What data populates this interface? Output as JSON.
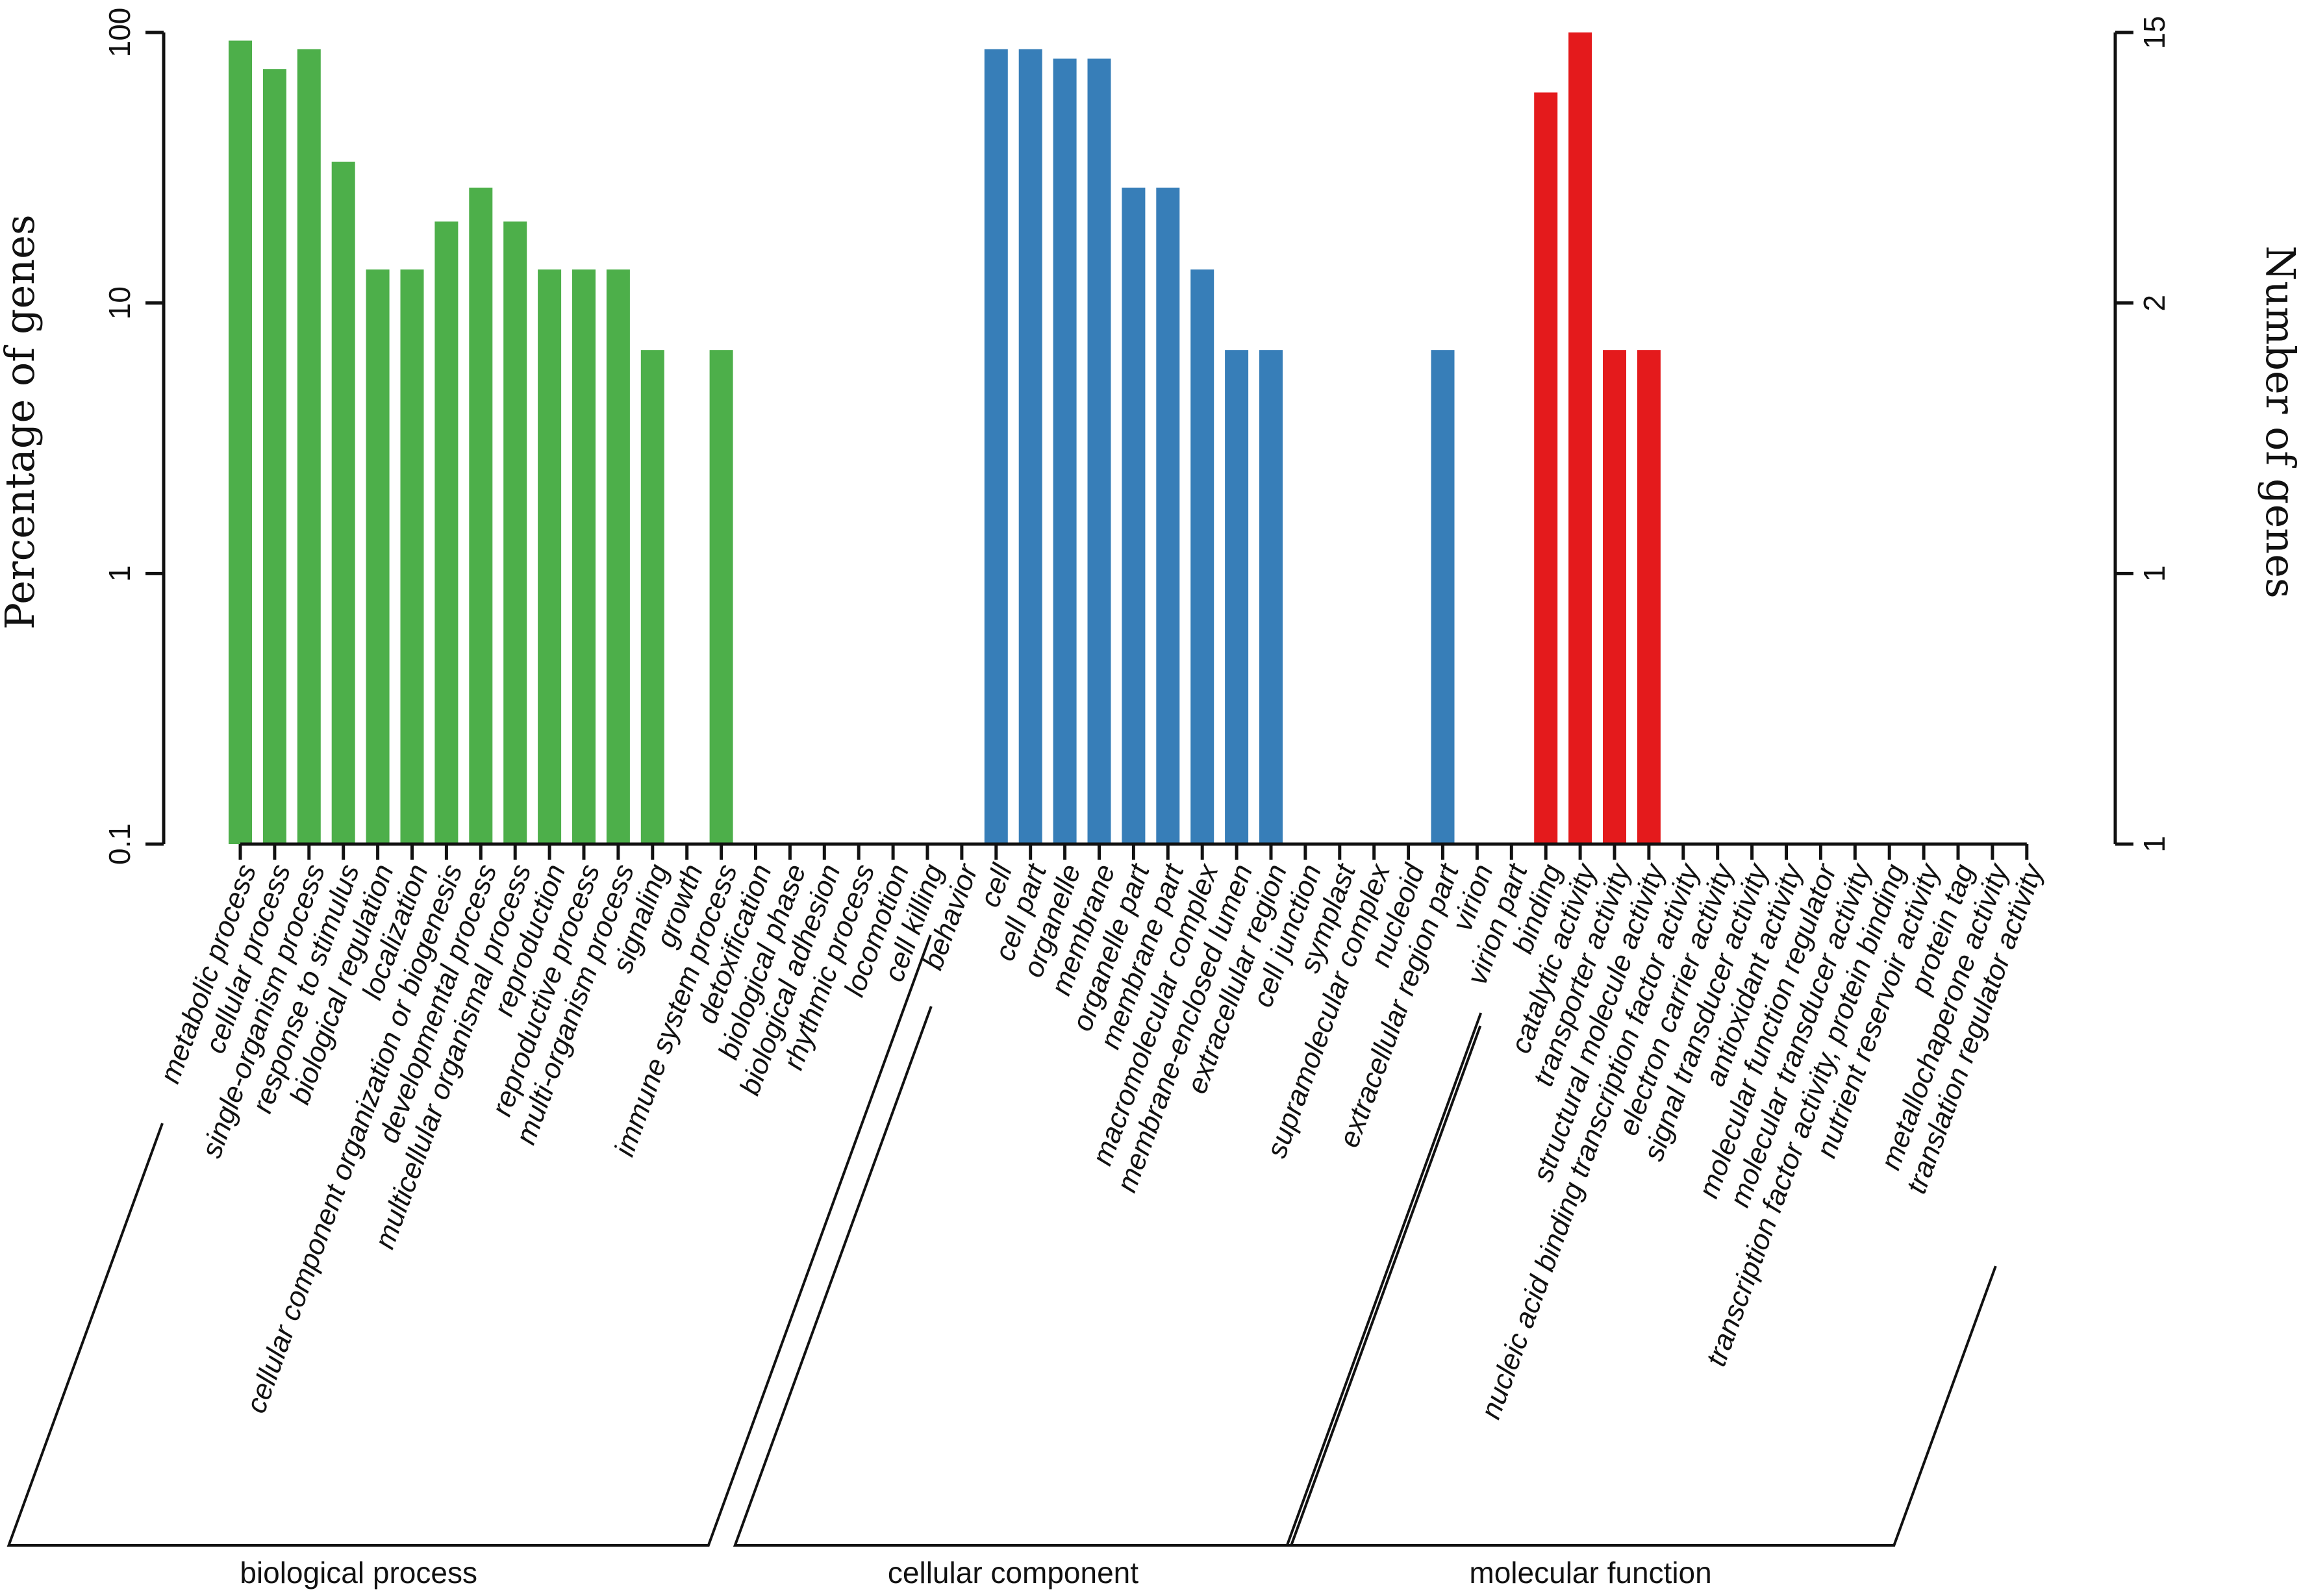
{
  "chart_data": {
    "type": "bar",
    "scale": "log",
    "ylabel": "Percentage of genes",
    "y2label": "Number of genes",
    "ylim": [
      0.1,
      100
    ],
    "yticks": [
      "100",
      "10",
      "1",
      "0.1"
    ],
    "y2ticks": [
      "15",
      "2",
      "1",
      "1"
    ],
    "colors": {
      "biological process": "#4daf4a",
      "cellular component": "#377eb8",
      "molecular function": "#e41a1c"
    },
    "groups": [
      {
        "name": "biological process",
        "color": "#4daf4a",
        "categories": [
          "metabolic process",
          "cellular process",
          "single-organism process",
          "response to stimulus",
          "biological regulation",
          "localization",
          "cellular component organization or biogenesis",
          "developmental process",
          "multicellular organismal process",
          "reproduction",
          "reproductive process",
          "multi-organism process",
          "signaling",
          "growth",
          "immune system process",
          "detoxification",
          "biological phase",
          "biological adhesion",
          "rhythmic process",
          "locomotion",
          "cell killing",
          "behavior"
        ],
        "values": [
          93.3,
          73.3,
          86.7,
          33.3,
          13.3,
          13.3,
          20,
          26.7,
          20,
          13.3,
          13.3,
          13.3,
          6.7,
          0,
          6.7,
          0,
          0,
          0,
          0,
          0,
          0,
          0
        ]
      },
      {
        "name": "cellular component",
        "color": "#377eb8",
        "categories": [
          "cell",
          "cell part",
          "organelle",
          "membrane",
          "organelle part",
          "membrane part",
          "macromolecular complex",
          "membrane-enclosed lumen",
          "extracellular region",
          "cell junction",
          "symplast",
          "supramolecular complex",
          "nucleoid",
          "extracellular region part",
          "virion",
          "virion part"
        ],
        "values": [
          86.7,
          86.7,
          80,
          80,
          26.7,
          26.7,
          13.3,
          6.7,
          6.7,
          0,
          0,
          0,
          0,
          6.7,
          0,
          0
        ]
      },
      {
        "name": "molecular function",
        "color": "#e41a1c",
        "categories": [
          "binding",
          "catalytic activity",
          "transporter activity",
          "structural molecule activity",
          "nucleic acid binding transcription factor activity",
          "electron carrier activity",
          "signal transducer activity",
          "antioxidant activity",
          "molecular function regulator",
          "molecular transducer activity",
          "transcription factor activity, protein binding",
          "nutrient reservoir activity",
          "protein tag",
          "metallochaperone activity",
          "translation regulator activity"
        ],
        "values": [
          60,
          100,
          6.7,
          6.7,
          0,
          0,
          0,
          0,
          0,
          0,
          0,
          0,
          0,
          0,
          0
        ]
      }
    ]
  }
}
